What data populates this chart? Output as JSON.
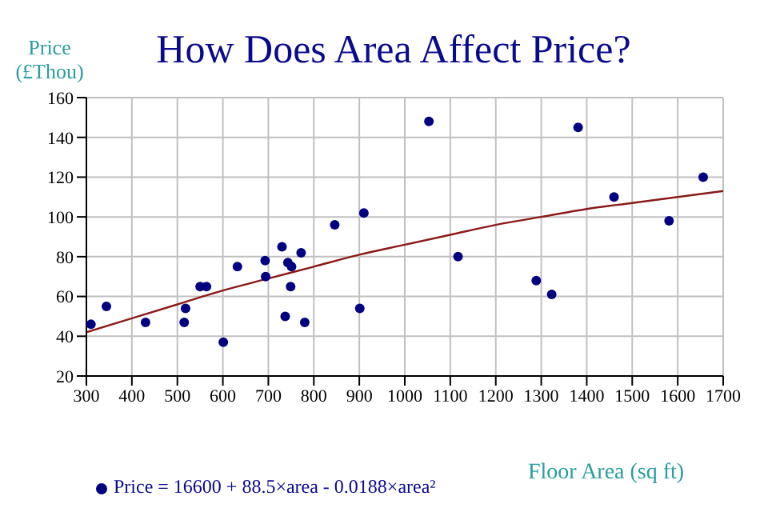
{
  "chart_data": {
    "type": "scatter",
    "title": "How Does Area Affect Price?",
    "xlabel": "Floor Area (sq ft)",
    "ylabel": "Price\n(£Thou)",
    "xlim": [
      300,
      1700
    ],
    "xticks": [
      300,
      400,
      500,
      600,
      700,
      800,
      900,
      1000,
      1100,
      1200,
      1300,
      1400,
      1500,
      1600,
      1700
    ],
    "ylim": [
      20,
      160
    ],
    "yticks": [
      20,
      40,
      60,
      80,
      100,
      120,
      140,
      160
    ],
    "grid": true,
    "legend": "bottom left",
    "series": [
      {
        "name": "Price = 16600 + 88.5×area - 0.0188×area²",
        "color": "#000080",
        "marker": "circle",
        "x": [
          310,
          344,
          430,
          518,
          515,
          550,
          564,
          601,
          632,
          693,
          694,
          730,
          737,
          743,
          751,
          749,
          772,
          780,
          846,
          901,
          910,
          1053,
          1117,
          1289,
          1323,
          1381,
          1460,
          1581,
          1656
        ],
        "values": [
          46,
          55,
          47,
          54,
          47,
          65,
          65,
          37,
          75,
          78,
          70,
          85,
          50,
          77,
          75,
          65,
          82,
          47,
          96,
          54,
          102,
          148,
          80,
          68,
          61,
          145,
          110,
          98,
          120
        ]
      },
      {
        "type": "line",
        "color": "#8b1a1a",
        "x": [
          300,
          400,
          500,
          600,
          700,
          800,
          900,
          1000,
          1100,
          1200,
          1300,
          1400,
          1500,
          1600,
          1700
        ],
        "values": [
          42,
          49,
          56,
          63,
          69,
          75,
          81,
          86,
          91,
          96,
          100,
          104,
          107,
          110,
          113
        ]
      }
    ]
  }
}
